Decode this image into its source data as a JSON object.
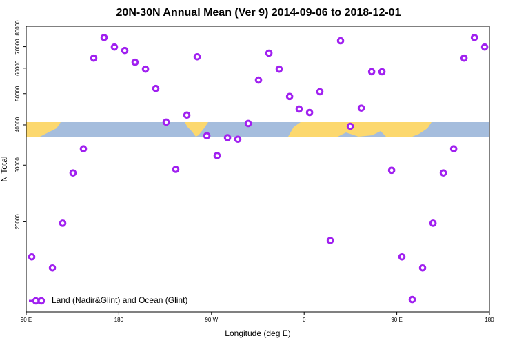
{
  "chart_data": {
    "type": "scatter",
    "title": "20N-30N Annual Mean (Ver 9)   2014-09-06 to 2018-12-01",
    "x_label": "Longitude (deg E)",
    "y_label": "N Total",
    "xlim": [
      90,
      540
    ],
    "ylim": [
      10500,
      81000
    ],
    "log_y": true,
    "xticks": [
      {
        "value": 90,
        "label": "90 E"
      },
      180,
      {
        "value": 270,
        "label": "90 W"
      },
      0,
      {
        "value": 450,
        "label": "90 E"
      },
      {
        "value": 540,
        "label": "180"
      }
    ],
    "yticks": [
      20000,
      30000,
      40000,
      50000,
      60000,
      70000,
      80000
    ],
    "legend": "bottom-left",
    "series": [
      {
        "name": "Land (Nadir&Glint) and Ocean (Glint)",
        "color": "#a020f0",
        "x": [
          95.4,
          115.5,
          125.5,
          135.5,
          145.6,
          155.6,
          165.7,
          175.7,
          185.8,
          195.8,
          205.9,
          215.9,
          226,
          235.3,
          246.1,
          256.1,
          265.5,
          275.5,
          285.6,
          295.6,
          305.7,
          315.7,
          325.8,
          335.8,
          345.9,
          355.2,
          365.3,
          375.3,
          385.4,
          395.4,
          404.8,
          415.5,
          425.6,
          435.6,
          445,
          455,
          465,
          475.1,
          485.2,
          495.2,
          505.3,
          515.3,
          525.4,
          535.4
        ],
        "values": [
          15560,
          14380,
          19800,
          28360,
          33700,
          64500,
          74700,
          69800,
          68100,
          62600,
          59600,
          51900,
          40800,
          29100,
          42900,
          65100,
          37000,
          32100,
          36500,
          36100,
          40400,
          55100,
          66800,
          59600,
          49000,
          44800,
          43700,
          50700,
          17500,
          73000,
          39600,
          45100,
          58500,
          58500,
          28900,
          15560,
          11470,
          14380,
          19800,
          28360,
          33700,
          64500,
          74700,
          69800
        ]
      }
    ]
  }
}
